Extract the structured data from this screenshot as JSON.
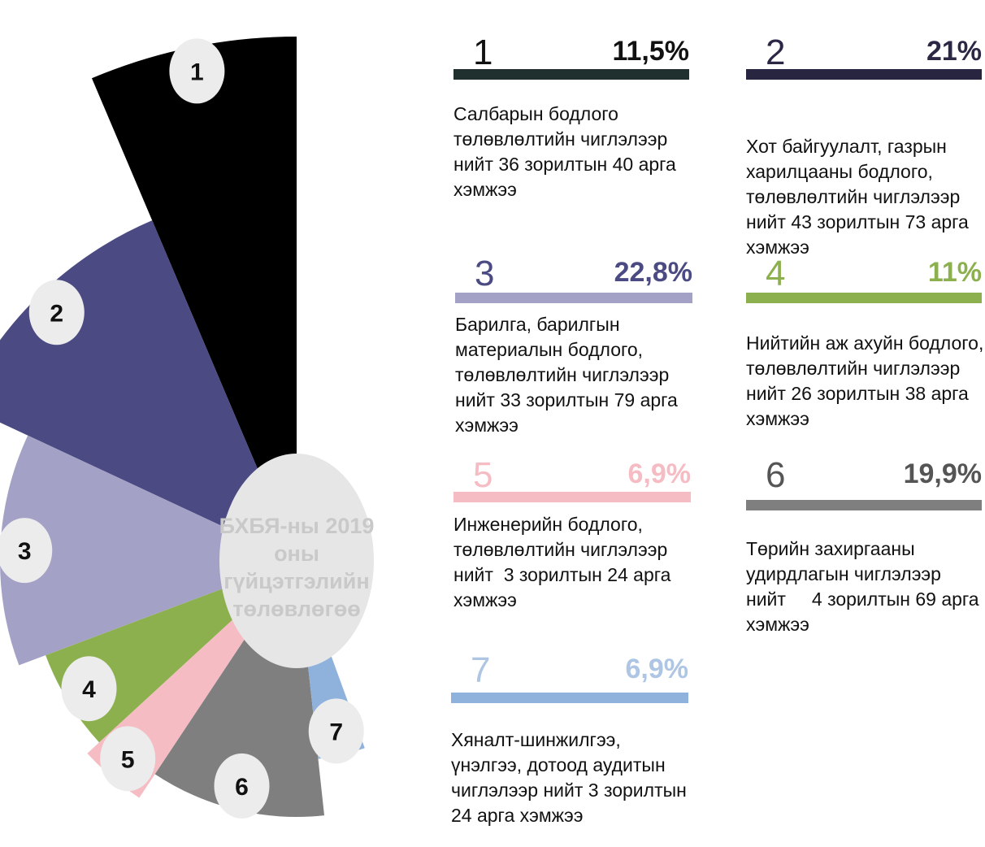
{
  "chart_data": {
    "type": "fan",
    "center_text": "БХБЯ-ны 2019 оны гүйцэтгэлийн төлөвлөгөө",
    "categories": [
      "1",
      "2",
      "3",
      "4",
      "5",
      "6",
      "7"
    ],
    "values": [
      11.5,
      21,
      22.8,
      11,
      6.9,
      19.9,
      6.9
    ],
    "value_labels": [
      "11,5%",
      "21%",
      "22,8%",
      "11%",
      "6,9%",
      "19,9%",
      "6,9%"
    ],
    "colors": [
      "#000000",
      "#4b4a82",
      "#a3a1c6",
      "#8db04e",
      "#f6bcc3",
      "#7f7f7f",
      "#8fb2dc"
    ],
    "descriptions": [
      "Салбарын бодлого төлөвлөлтийн чиглэлээр нийт 36 зорилтын 40 арга хэмжээ",
      "Хот байгуулалт, газрын харилцааны бодлого, төлөвлөлтийн чиглэлээр  нийт 43 зорилтын 73 арга хэмжээ",
      "Барилга, барилгын материалын бодлого, төлөвлөлтийн чиглэлээр нийт 33 зорилтын 79 арга хэмжээ",
      "Нийтийн аж ахуйн бодлого, төлөвлөлтийн чиглэлээр нийт 26 зорилтын 38 арга хэмжээ",
      "Инженерийн бодлого, төлөвлөлтийн чиглэлээр нийт  3 зорилтын 24 арга хэмжээ",
      "Төрийн захиргааны удирдлагын чиглэлээр нийт     4 зорилтын 69 арга хэмжээ",
      "Хяналт-шинжилгээ, үнэлгээ, дотоод аудитын чиглэлээр нийт 3 зорилтын 24 арга хэмжээ"
    ]
  }
}
